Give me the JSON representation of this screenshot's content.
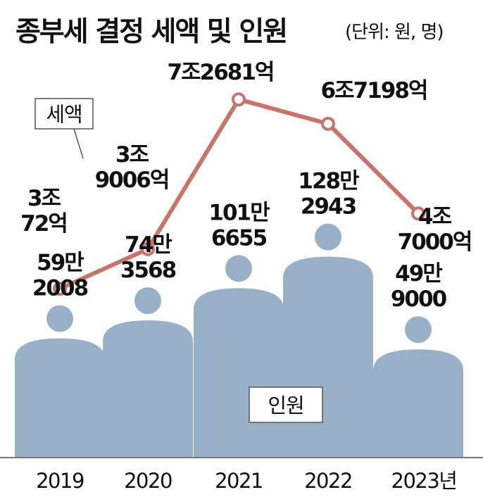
{
  "title": "종부세 결정 세액 및 인원",
  "unit": "(단위: 원, 명)",
  "chart_data": {
    "type": "bar+line",
    "categories": [
      "2019",
      "2020",
      "2021",
      "2022",
      "2023년"
    ],
    "series": [
      {
        "name": "세액",
        "type": "line",
        "color": "#c87468",
        "values": [
          30072000000,
          39006000000,
          72681000000,
          67198000000,
          47000000000
        ],
        "labels": [
          [
            "3조",
            "72억"
          ],
          [
            "3조",
            "9006억"
          ],
          [
            "7조2681억"
          ],
          [
            "6조7198억"
          ],
          [
            "4조",
            "7000억"
          ]
        ]
      },
      {
        "name": "인원",
        "type": "bar",
        "color": "#98b0c8",
        "values": [
          592008,
          743568,
          1016655,
          1282943,
          499000
        ],
        "labels": [
          [
            "59만",
            "2008"
          ],
          [
            "74만",
            "3568"
          ],
          [
            "101만",
            "6655"
          ],
          [
            "128만",
            "2943"
          ],
          [
            "49만",
            "9000"
          ]
        ]
      }
    ],
    "ylim_tax": [
      0,
      80000000000
    ],
    "ylim_people": [
      0,
      1400000
    ],
    "grid": false,
    "legend": "none"
  }
}
